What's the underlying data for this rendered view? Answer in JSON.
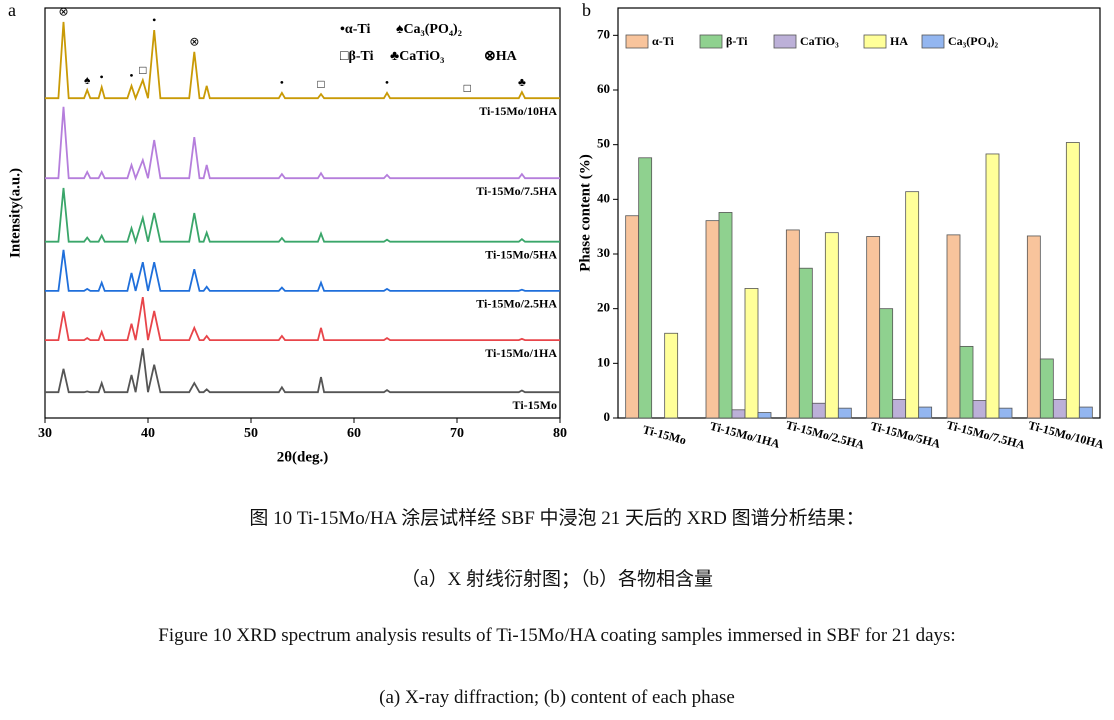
{
  "chart_data": [
    {
      "type": "line",
      "panel_label": "a",
      "xlabel": "2θ(deg.)",
      "ylabel": "Intensity(a.u.)",
      "xlim": [
        30,
        80
      ],
      "xticks": [
        30,
        40,
        50,
        60,
        70,
        80
      ],
      "ylim": [
        0,
        100
      ],
      "x": [
        30,
        31.3,
        31.8,
        32.3,
        33.8,
        34.1,
        34.4,
        35.2,
        35.5,
        35.8,
        38.0,
        38.4,
        38.8,
        39.5,
        40.0,
        40.6,
        41.2,
        44.0,
        44.5,
        45.0,
        45.4,
        45.7,
        46.0,
        52.7,
        53.0,
        53.3,
        56.5,
        56.8,
        57.1,
        62.9,
        63.2,
        63.5,
        76.0,
        76.3,
        76.6,
        80
      ],
      "series": [
        {
          "name": "Ti-15Mo/10HA",
          "color": "#c99a06",
          "values": [
            78,
            78,
            96.6,
            78,
            78,
            80,
            78,
            78,
            80.7,
            78,
            78,
            81,
            78,
            82.4,
            78,
            94.6,
            78,
            78,
            89.3,
            78,
            78,
            81,
            78,
            78,
            79.3,
            78,
            78,
            79,
            78,
            78,
            79.3,
            78,
            78,
            79.5,
            78,
            78
          ]
        },
        {
          "name": "Ti-15Mo/7.5HA",
          "color": "#b57edc",
          "values": [
            58.5,
            58.5,
            75.9,
            58.5,
            58.5,
            60,
            58.5,
            58.5,
            60,
            58.5,
            58.5,
            61.7,
            58.5,
            62.9,
            58.5,
            67.8,
            58.5,
            58.5,
            68.5,
            58.5,
            58.5,
            61.7,
            58.5,
            58.5,
            59.5,
            58.5,
            58.5,
            59.7,
            58.5,
            58.5,
            59.3,
            58.5,
            58.5,
            59.5,
            58.5,
            58.5
          ]
        },
        {
          "name": "Ti-15Mo/5HA",
          "color": "#3aa66a",
          "values": [
            43,
            43,
            56.1,
            43,
            43,
            44,
            43,
            43,
            44.5,
            43,
            43,
            46.3,
            43,
            48.8,
            43,
            50,
            43,
            43,
            50,
            43,
            43,
            45.2,
            43,
            43,
            43.9,
            43,
            43,
            45,
            43,
            43,
            43.5,
            43,
            43,
            43.6,
            43,
            43
          ]
        },
        {
          "name": "Ti-15Mo/2.5HA",
          "color": "#1f6fdb",
          "values": [
            31,
            31,
            41,
            31,
            31,
            31.5,
            31,
            31,
            33,
            31,
            31,
            35.4,
            31,
            38,
            31,
            38,
            31,
            31,
            36.3,
            31,
            31,
            32,
            31,
            31,
            31.8,
            31,
            31,
            33,
            31,
            31,
            31.5,
            31,
            31,
            31.3,
            31,
            31
          ]
        },
        {
          "name": "Ti-15Mo/1HA",
          "color": "#e8454a",
          "values": [
            19,
            19,
            26,
            19,
            19,
            19.5,
            19,
            19,
            21,
            19,
            19,
            23,
            19,
            29.5,
            19,
            26.1,
            19,
            19,
            22,
            19,
            19,
            20,
            19,
            19,
            20,
            19,
            19,
            22,
            19,
            19,
            19.5,
            19,
            19,
            19.3,
            19,
            19
          ]
        },
        {
          "name": "Ti-15Mo",
          "color": "#555555",
          "values": [
            6.3,
            6.3,
            12,
            6.3,
            6.3,
            6.5,
            6.3,
            6.3,
            8.5,
            6.3,
            6.3,
            10.5,
            6.3,
            17,
            6.3,
            13,
            6.3,
            6.3,
            8.5,
            6.3,
            6.3,
            7,
            6.3,
            6.3,
            7.5,
            6.3,
            6.3,
            10,
            6.3,
            6.3,
            6.8,
            6.3,
            6.3,
            6.7,
            6.3,
            6.3
          ]
        }
      ],
      "annotations": [
        {
          "text": "⊗",
          "x": 31.8
        },
        {
          "text": "♠",
          "x": 34.1
        },
        {
          "text": "•",
          "x": 35.5
        },
        {
          "text": "•",
          "x": 38.4
        },
        {
          "text": "□",
          "x": 39.5
        },
        {
          "text": "•",
          "x": 40.6
        },
        {
          "text": "⊗",
          "x": 44.5
        },
        {
          "text": "•",
          "x": 53.0
        },
        {
          "text": "□",
          "x": 56.8
        },
        {
          "text": "•",
          "x": 63.2
        },
        {
          "text": "□",
          "x": 71
        },
        {
          "text": "♣",
          "x": 76.3
        }
      ],
      "marker_legend": [
        "•α-Ti",
        "♠Ca₃(PO₄)₂",
        "□β-Ti",
        "♣CaTiO₃",
        "⊗HA"
      ]
    },
    {
      "type": "bar",
      "panel_label": "b",
      "ylabel": "Phase content (%)",
      "categories": [
        "Ti-15Mo",
        "Ti-15Mo/1HA",
        "Ti-15Mo/2.5HA",
        "Ti-15Mo/5HA",
        "Ti-15Mo/7.5HA",
        "Ti-15Mo/10HA"
      ],
      "ylim": [
        0,
        75
      ],
      "yticks": [
        0,
        10,
        20,
        30,
        40,
        50,
        60,
        70
      ],
      "legend": "top-left",
      "series": [
        {
          "name": "α-Ti",
          "color": "#f8c49c",
          "values": [
            37,
            36.1,
            34.4,
            33.2,
            33.5,
            33.3
          ]
        },
        {
          "name": "β-Ti",
          "color": "#8fd18f",
          "values": [
            47.6,
            37.6,
            27.4,
            20,
            13.1,
            10.8
          ]
        },
        {
          "name": "CaTiO₃",
          "color": "#bcb0d8",
          "values": [
            null,
            1.5,
            2.7,
            3.4,
            3.2,
            3.4
          ]
        },
        {
          "name": "HA",
          "color": "#ffff99",
          "values": [
            15.5,
            23.7,
            33.9,
            41.4,
            48.3,
            50.4
          ]
        },
        {
          "name": "Ca₃(PO₄)₂",
          "color": "#93b6f0",
          "values": [
            null,
            1.0,
            1.8,
            2.0,
            1.8,
            2.0
          ]
        }
      ]
    }
  ],
  "captions": [
    "图 10 Ti-15Mo/HA 涂层试样经 SBF 中浸泡 21 天后的 XRD 图谱分析结果：",
    "（a）X 射线衍射图；（b）各物相含量",
    "Figure 10 XRD spectrum analysis results of Ti-15Mo/HA coating samples immersed in SBF for 21 days:",
    "(a) X-ray diffraction; (b) content of each phase"
  ]
}
